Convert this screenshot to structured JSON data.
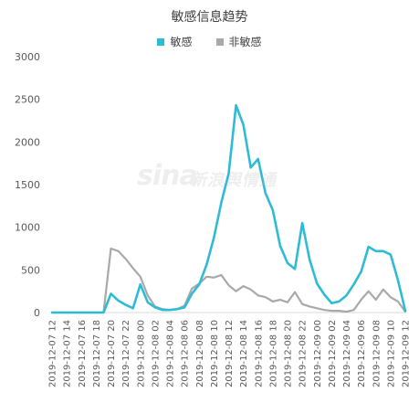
{
  "chart_data": {
    "type": "line",
    "title": "敏感信息趋势",
    "xlabel": "",
    "ylabel": "",
    "ylim": [
      0,
      3000
    ],
    "yticks": [
      0,
      500,
      1000,
      1500,
      2000,
      2500,
      3000
    ],
    "grid": false,
    "legend_position": "top",
    "categories": [
      "2019-12-07 12",
      "",
      "2019-12-07 14",
      "",
      "2019-12-07 16",
      "",
      "2019-12-07 18",
      "",
      "2019-12-07 20",
      "",
      "2019-12-07 22",
      "",
      "2019-12-08 00",
      "",
      "2019-12-08 02",
      "",
      "2019-12-08 04",
      "",
      "2019-12-08 06",
      "",
      "2019-12-08 08",
      "",
      "2019-12-08 10",
      "",
      "2019-12-08 12",
      "",
      "2019-12-08 14",
      "",
      "2019-12-08 16",
      "",
      "2019-12-08 18",
      "",
      "2019-12-08 20",
      "",
      "2019-12-08 22",
      "",
      "2019-12-09 00",
      "",
      "2019-12-09 02",
      "",
      "2019-12-09 04",
      "",
      "2019-12-09 06",
      "",
      "2019-12-09 08",
      "",
      "2019-12-09 10",
      "",
      "2019-12-09 12"
    ],
    "series": [
      {
        "name": "敏感",
        "color": "#2ebbd6",
        "values": [
          0,
          0,
          0,
          0,
          0,
          0,
          0,
          0,
          220,
          140,
          90,
          50,
          330,
          120,
          60,
          30,
          30,
          40,
          60,
          220,
          330,
          560,
          880,
          1290,
          1630,
          2430,
          2200,
          1700,
          1800,
          1400,
          1200,
          780,
          580,
          510,
          1050,
          620,
          340,
          210,
          110,
          130,
          200,
          330,
          480,
          770,
          720,
          720,
          680,
          380,
          20
        ]
      },
      {
        "name": "非敏感",
        "color": "#a9a9a9",
        "values": [
          0,
          0,
          0,
          0,
          0,
          0,
          0,
          0,
          750,
          720,
          630,
          520,
          420,
          200,
          70,
          40,
          30,
          40,
          80,
          280,
          340,
          420,
          410,
          440,
          320,
          250,
          310,
          270,
          200,
          180,
          130,
          150,
          120,
          240,
          100,
          70,
          50,
          30,
          20,
          20,
          10,
          30,
          150,
          250,
          150,
          270,
          180,
          130,
          10
        ]
      }
    ]
  },
  "watermark": {
    "logo": "sina",
    "text": "新浪舆情通"
  }
}
